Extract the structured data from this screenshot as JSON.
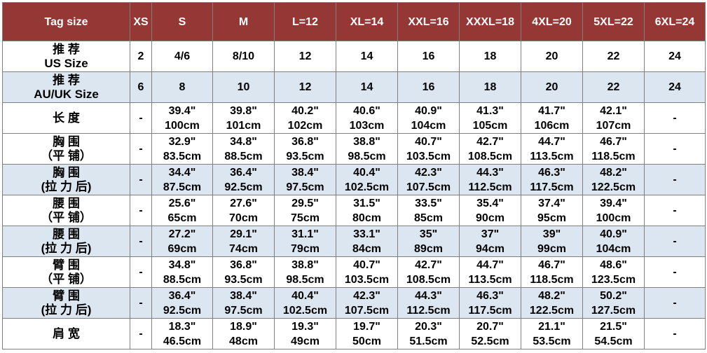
{
  "table": {
    "header": [
      "Tag size",
      "XS",
      "S",
      "M",
      "L=12",
      "XL=14",
      "XXL=16",
      "XXXL=18",
      "4XL=20",
      "5XL=22",
      "6XL=24"
    ],
    "rows": [
      [
        [
          "推 荐",
          "US Size"
        ],
        [
          "2"
        ],
        [
          "4/6"
        ],
        [
          "8/10"
        ],
        [
          "12"
        ],
        [
          "14"
        ],
        [
          "16"
        ],
        [
          "18"
        ],
        [
          "20"
        ],
        [
          "22"
        ],
        [
          "24"
        ]
      ],
      [
        [
          "推 荐",
          "AU/UK Size"
        ],
        [
          "6"
        ],
        [
          "8"
        ],
        [
          "10"
        ],
        [
          "12"
        ],
        [
          "14"
        ],
        [
          "16"
        ],
        [
          "18"
        ],
        [
          "20"
        ],
        [
          "22"
        ],
        [
          "24"
        ]
      ],
      [
        [
          "长 度"
        ],
        [
          "-"
        ],
        [
          "39.4\"",
          "100cm"
        ],
        [
          "39.8\"",
          "101cm"
        ],
        [
          "40.2\"",
          "102cm"
        ],
        [
          "40.6\"",
          "103cm"
        ],
        [
          "40.9\"",
          "104cm"
        ],
        [
          "41.3\"",
          "105cm"
        ],
        [
          "41.7\"",
          "106cm"
        ],
        [
          "42.1\"",
          "107cm"
        ],
        [
          "-"
        ]
      ],
      [
        [
          "胸 围",
          "（平 铺）"
        ],
        [
          "-"
        ],
        [
          "32.9\"",
          "83.5cm"
        ],
        [
          "34.8\"",
          "88.5cm"
        ],
        [
          "36.8\"",
          "93.5cm"
        ],
        [
          "38.8\"",
          "98.5cm"
        ],
        [
          "40.7\"",
          "103.5cm"
        ],
        [
          "42.7\"",
          "108.5cm"
        ],
        [
          "44.7\"",
          "113.5cm"
        ],
        [
          "46.7\"",
          "118.5cm"
        ],
        [
          "-"
        ]
      ],
      [
        [
          "胸 围",
          "(拉 力 后)"
        ],
        [
          "-"
        ],
        [
          "34.4\"",
          "87.5cm"
        ],
        [
          "36.4\"",
          "92.5cm"
        ],
        [
          "38.4\"",
          "97.5cm"
        ],
        [
          "40.4\"",
          "102.5cm"
        ],
        [
          "42.3\"",
          "107.5cm"
        ],
        [
          "44.3\"",
          "112.5cm"
        ],
        [
          "46.3\"",
          "117.5cm"
        ],
        [
          "48.2\"",
          "122.5cm"
        ],
        [
          "-"
        ]
      ],
      [
        [
          "腰 围",
          "（平 铺）"
        ],
        [
          "-"
        ],
        [
          "25.6\"",
          "65cm"
        ],
        [
          "27.6\"",
          "70cm"
        ],
        [
          "29.5\"",
          "75cm"
        ],
        [
          "31.5\"",
          "80cm"
        ],
        [
          "33.5\"",
          "85cm"
        ],
        [
          "35.4\"",
          "90cm"
        ],
        [
          "37.4\"",
          "95cm"
        ],
        [
          "39.4\"",
          "100cm"
        ],
        [
          "-"
        ]
      ],
      [
        [
          "腰 围",
          "(拉 力 后)"
        ],
        [
          "-"
        ],
        [
          "27.2\"",
          "69cm"
        ],
        [
          "29.1\"",
          "74cm"
        ],
        [
          "31.1\"",
          "79cm"
        ],
        [
          "33.1\"",
          "84cm"
        ],
        [
          "35\"",
          "89cm"
        ],
        [
          "37\"",
          "94cm"
        ],
        [
          "39\"",
          "99cm"
        ],
        [
          "40.9\"",
          "104cm"
        ],
        [
          "-"
        ]
      ],
      [
        [
          "臂 围",
          "（平 铺）"
        ],
        [
          "-"
        ],
        [
          "34.8\"",
          "88.5cm"
        ],
        [
          "36.8\"",
          "93.5cm"
        ],
        [
          "38.8\"",
          "98.5cm"
        ],
        [
          "40.7\"",
          "103.5cm"
        ],
        [
          "42.7\"",
          "108.5cm"
        ],
        [
          "44.7\"",
          "113.5cm"
        ],
        [
          "46.7\"",
          "118.5cm"
        ],
        [
          "48.6\"",
          "123.5cm"
        ],
        [
          "-"
        ]
      ],
      [
        [
          "臂 围",
          "(拉 力 后)"
        ],
        [
          "-"
        ],
        [
          "36.4\"",
          "92.5cm"
        ],
        [
          "38.4\"",
          "97.5cm"
        ],
        [
          "40.4\"",
          "102.5cm"
        ],
        [
          "42.3\"",
          "107.5cm"
        ],
        [
          "44.3\"",
          "112.5cm"
        ],
        [
          "46.3\"",
          "117.5cm"
        ],
        [
          "48.2\"",
          "122.5cm"
        ],
        [
          "50.2\"",
          "127.5cm"
        ],
        [
          "-"
        ]
      ],
      [
        [
          "肩 宽"
        ],
        [
          "-"
        ],
        [
          "18.3\"",
          "46.5cm"
        ],
        [
          "18.9\"",
          "48cm"
        ],
        [
          "19.3\"",
          "49cm"
        ],
        [
          "19.7\"",
          "50cm"
        ],
        [
          "20.3\"",
          "51.5cm"
        ],
        [
          "20.7\"",
          "52.5cm"
        ],
        [
          "21.1\"",
          "53.5cm"
        ],
        [
          "21.5\"",
          "54.5cm"
        ],
        [
          "-"
        ]
      ]
    ]
  }
}
